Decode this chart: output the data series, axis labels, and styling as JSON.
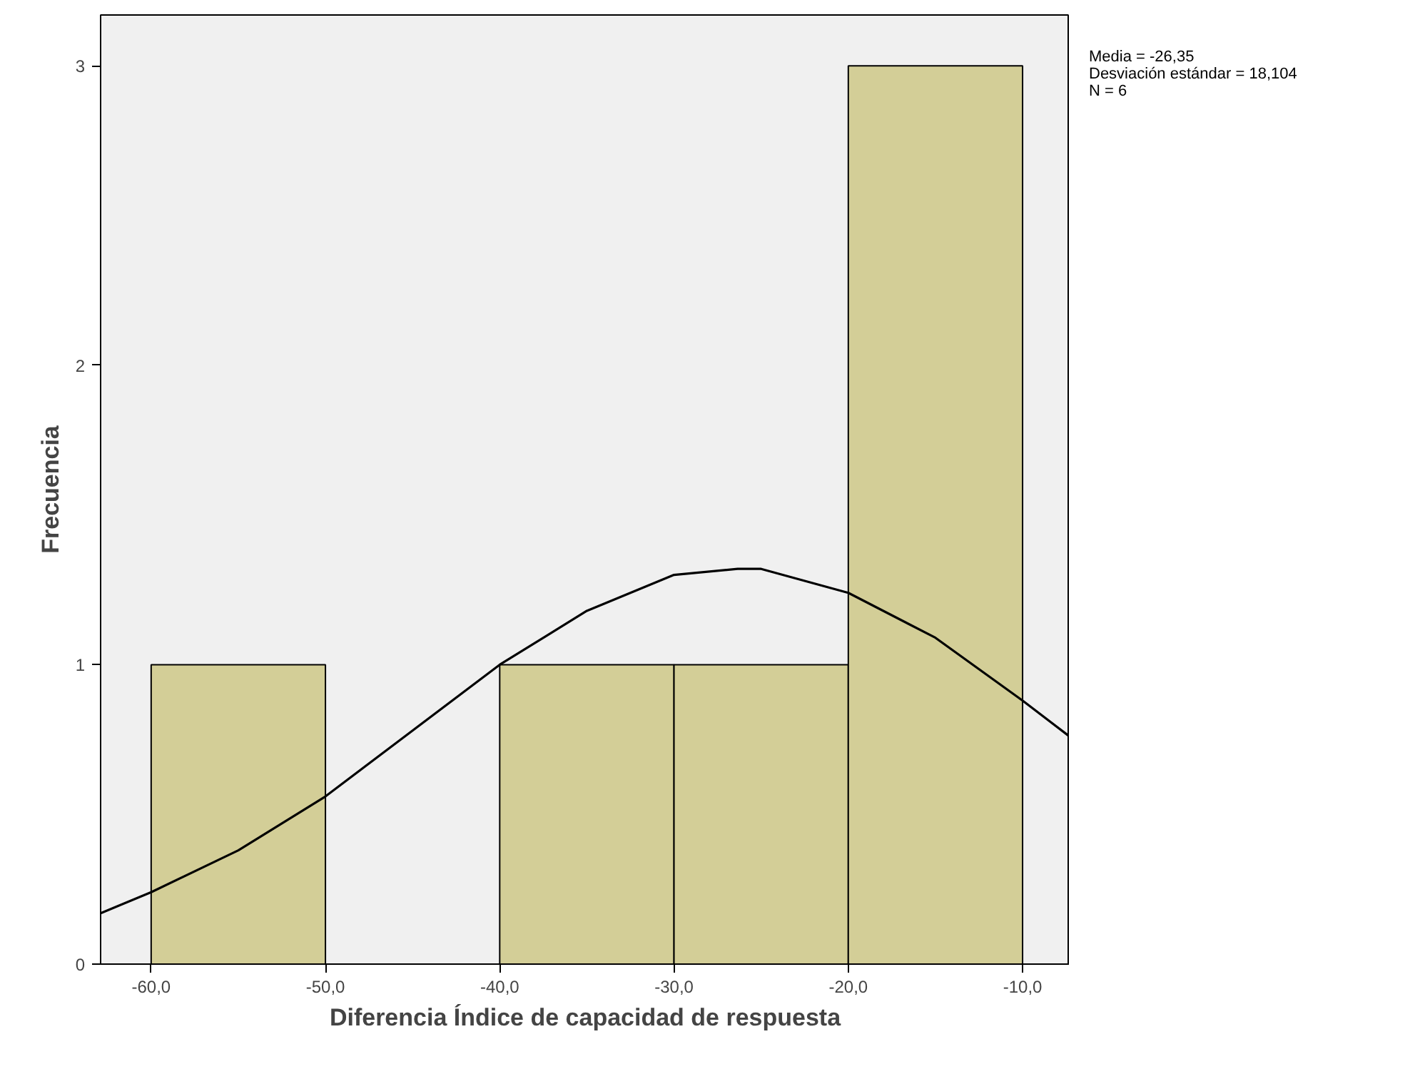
{
  "chart_data": {
    "type": "histogram",
    "xlabel": "Diferencia Índice de capacidad de respuesta",
    "ylabel": "Frecuencia",
    "bins": [
      -60,
      -50,
      -40,
      -30,
      -20,
      -10
    ],
    "values": [
      1,
      0,
      1,
      1,
      3
    ],
    "color": "#d3ce97",
    "series": [
      {
        "type": "line",
        "color": "#000000",
        "x": [
          -62.9,
          -60,
          -55,
          -50,
          -45,
          -40,
          -35,
          -30,
          -26.35,
          -25,
          -20,
          -15,
          -10,
          -7.3
        ],
        "values": [
          0.17,
          0.24,
          0.38,
          0.56,
          0.78,
          1.0,
          1.18,
          1.3,
          1.32,
          1.32,
          1.24,
          1.09,
          0.88,
          0.76
        ]
      }
    ],
    "xlim": [
      -62.9,
      -7.3
    ],
    "ylim": [
      0,
      3.17
    ],
    "xticks": [
      {
        "value": -60,
        "label": "-60,0"
      },
      {
        "value": -50,
        "label": "-50,0"
      },
      {
        "value": -40,
        "label": "-40,0"
      },
      {
        "value": -30,
        "label": "-30,0"
      },
      {
        "value": -20,
        "label": "-20,0"
      },
      {
        "value": -10,
        "label": "-10,0"
      }
    ],
    "yticks": [
      0,
      1,
      2,
      3
    ],
    "annotations": [
      "Media = -26,35",
      "Desviación estándar = 18,104",
      "N = 6"
    ],
    "grid": false
  }
}
